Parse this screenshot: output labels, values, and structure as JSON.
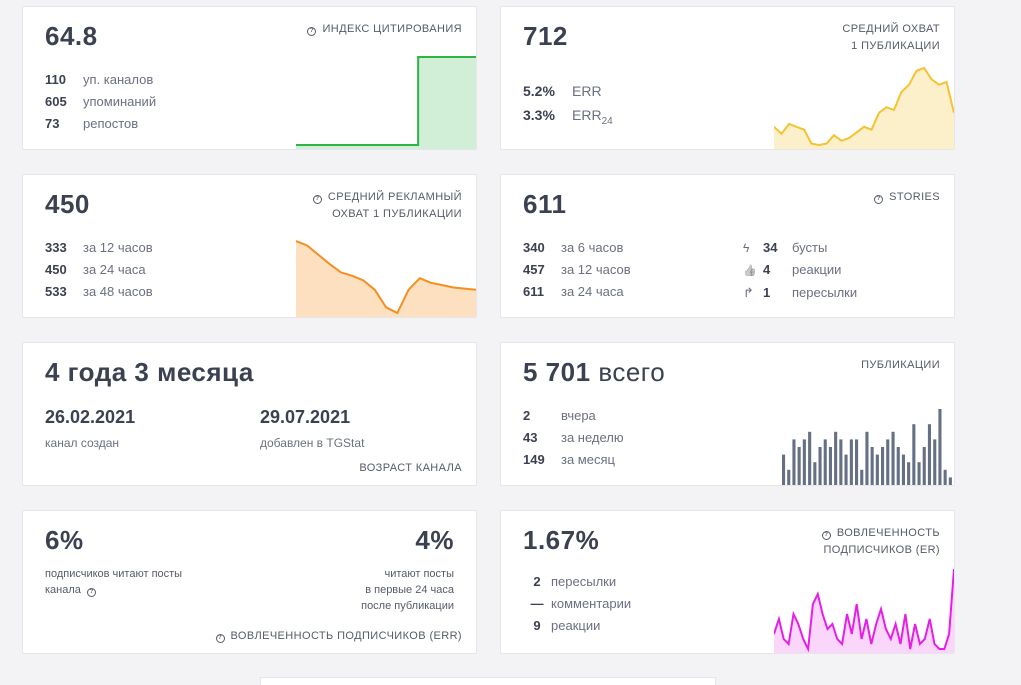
{
  "colors": {
    "green": "#2fb344",
    "yellow": "#f5c230",
    "orange": "#f58e1e",
    "gray_bar": "#667085",
    "magenta": "#e61ee6"
  },
  "citation": {
    "value": "64.8",
    "title": "ИНДЕКС ЦИТИРОВАНИЯ",
    "rows": [
      {
        "n": "110",
        "label": "уп. каналов"
      },
      {
        "n": "605",
        "label": "упоминаний"
      },
      {
        "n": "73",
        "label": "репостов"
      }
    ],
    "spark": [
      0,
      0,
      0,
      0,
      0,
      0,
      0,
      0,
      0,
      0,
      0,
      0,
      0,
      0,
      0,
      0,
      0,
      0,
      0,
      1,
      1,
      1,
      1,
      1,
      1,
      1,
      1,
      1,
      1
    ]
  },
  "avg_reach": {
    "value": "712",
    "title_line1": "СРЕДНИЙ ОХВАТ",
    "title_line2": "1 ПУБЛИКАЦИИ",
    "rows": [
      {
        "n": "5.2%",
        "label": "ERR"
      },
      {
        "n": "3.3%",
        "label": "ERR",
        "sub": "24"
      }
    ],
    "spark": [
      30,
      25,
      32,
      30,
      28,
      18,
      17,
      18,
      24,
      20,
      22,
      26,
      30,
      28,
      40,
      44,
      42,
      55,
      60,
      70,
      72,
      64,
      60,
      62,
      40
    ]
  },
  "ad_reach": {
    "value": "450",
    "title_line1": "СРЕДНИЙ РЕКЛАМНЫЙ",
    "title_line2": "ОХВАТ 1 ПУБЛИКАЦИИ",
    "rows": [
      {
        "n": "333",
        "label": "за 12 часов"
      },
      {
        "n": "450",
        "label": "за 24 часа"
      },
      {
        "n": "533",
        "label": "за 48 часов"
      }
    ],
    "spark": [
      72,
      68,
      60,
      52,
      45,
      42,
      38,
      30,
      15,
      10,
      30,
      40,
      36,
      34,
      32,
      31,
      30
    ]
  },
  "stories": {
    "value": "611",
    "title": "STORIES",
    "left_rows": [
      {
        "n": "340",
        "label": "за 6 часов"
      },
      {
        "n": "457",
        "label": "за 12 часов"
      },
      {
        "n": "611",
        "label": "за 24 часа"
      }
    ],
    "right_rows": [
      {
        "icon": "lightning-icon",
        "glyph": "ϟ",
        "n": "34",
        "label": "бусты"
      },
      {
        "icon": "thumbs-up-icon",
        "glyph": "👍",
        "n": "4",
        "label": "реакции"
      },
      {
        "icon": "share-arrow-icon",
        "glyph": "↱",
        "n": "1",
        "label": "пересылки"
      }
    ]
  },
  "age": {
    "value": "4 года 3 месяца",
    "created_date": "26.02.2021",
    "created_label": "канал создан",
    "added_date": "29.07.2021",
    "added_label": "добавлен в TGStat",
    "footer": "ВОЗРАСТ КАНАЛА"
  },
  "posts": {
    "value": "5 701",
    "suffix": "всего",
    "title": "ПУБЛИКАЦИИ",
    "rows": [
      {
        "n": "2",
        "label": "вчера"
      },
      {
        "n": "43",
        "label": "за неделю"
      },
      {
        "n": "149",
        "label": "за месяц"
      }
    ],
    "bars": [
      4,
      2,
      6,
      5,
      6,
      7,
      3,
      5,
      6,
      5,
      7,
      6,
      4,
      6,
      6,
      2,
      7,
      5,
      4,
      5,
      6,
      7,
      5,
      4,
      3,
      8,
      3,
      5,
      8,
      6,
      10,
      2,
      1
    ]
  },
  "err": {
    "value_left": "6%",
    "text_left_line1": "подписчиков читают посты",
    "text_left_line2": "канала",
    "value_right": "4%",
    "text_right_line1": "читают посты",
    "text_right_line2": "в первые 24 часа",
    "text_right_line3": "после публикации",
    "footer": "ВОВЛЕЧЕННОСТЬ ПОДПИСЧИКОВ (ERR)"
  },
  "er": {
    "value": "1.67%",
    "title_line1": "ВОВЛЕЧЕННОСТЬ",
    "title_line2": "ПОДПИСЧИКОВ (ER)",
    "rows": [
      {
        "n": "2",
        "label": "пересылки"
      },
      {
        "n": "—",
        "label": "комментарии"
      },
      {
        "n": "9",
        "label": "реакции"
      }
    ],
    "spark": [
      14,
      20,
      12,
      10,
      22,
      18,
      12,
      8,
      26,
      30,
      22,
      16,
      18,
      12,
      10,
      22,
      14,
      26,
      12,
      20,
      10,
      18,
      24,
      16,
      12,
      18,
      10,
      22,
      8,
      18,
      10,
      12,
      20,
      10,
      8,
      8,
      14,
      40
    ]
  }
}
